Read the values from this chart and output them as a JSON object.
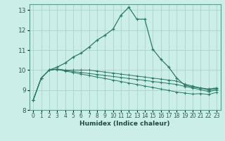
{
  "xlabel": "Humidex (Indice chaleur)",
  "bg_color": "#cceee8",
  "grid_color": "#aad4cc",
  "line_color": "#2a7a6a",
  "xlim": [
    -0.5,
    23.5
  ],
  "ylim": [
    8,
    13.3
  ],
  "x_ticks": [
    0,
    1,
    2,
    3,
    4,
    5,
    6,
    7,
    8,
    9,
    10,
    11,
    12,
    13,
    14,
    15,
    16,
    17,
    18,
    19,
    20,
    21,
    22,
    23
  ],
  "y_ticks": [
    8,
    9,
    10,
    11,
    12,
    13
  ],
  "series": [
    [
      8.5,
      9.6,
      10.0,
      10.15,
      10.35,
      10.65,
      10.85,
      11.15,
      11.5,
      11.75,
      12.05,
      12.75,
      13.15,
      12.55,
      12.55,
      11.05,
      10.55,
      10.15,
      9.6,
      9.25,
      9.15,
      9.1,
      9.05,
      9.1
    ],
    [
      8.5,
      9.6,
      10.0,
      10.05,
      10.0,
      10.0,
      10.0,
      10.0,
      9.95,
      9.9,
      9.85,
      9.8,
      9.75,
      9.7,
      9.65,
      9.6,
      9.55,
      9.5,
      9.45,
      9.3,
      9.2,
      9.1,
      9.0,
      9.05
    ],
    [
      8.5,
      9.6,
      10.0,
      10.05,
      9.98,
      9.93,
      9.88,
      9.83,
      9.78,
      9.73,
      9.68,
      9.63,
      9.58,
      9.53,
      9.48,
      9.43,
      9.38,
      9.33,
      9.28,
      9.18,
      9.1,
      9.02,
      8.92,
      9.0
    ],
    [
      8.5,
      9.6,
      10.0,
      10.03,
      9.95,
      9.88,
      9.8,
      9.73,
      9.65,
      9.58,
      9.5,
      9.43,
      9.35,
      9.28,
      9.2,
      9.13,
      9.05,
      8.98,
      8.9,
      8.85,
      8.8,
      8.82,
      8.78,
      8.88
    ]
  ]
}
